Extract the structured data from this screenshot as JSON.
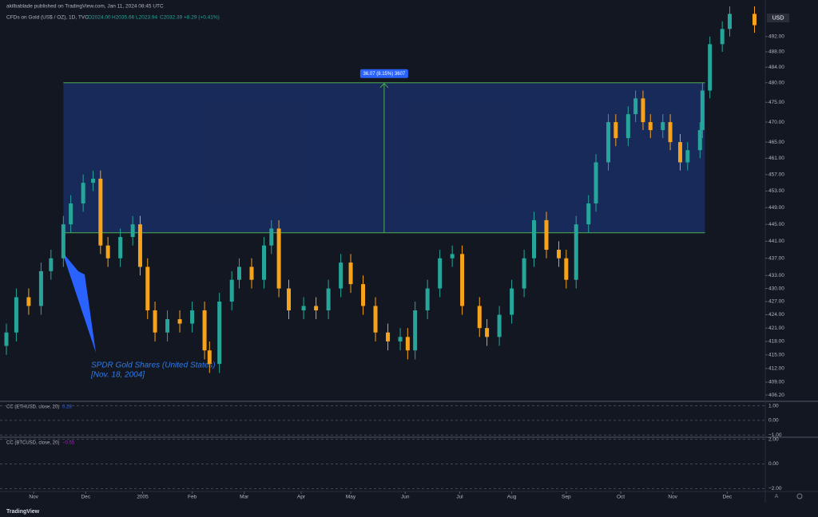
{
  "header": {
    "publisher": "akilbablade published on TradingView.com, Jan 11, 2024 08:45 UTC",
    "symbol": "CFDs on Gold (US$ / OZ), 1D, TVC",
    "ohlc": [
      "O2024.00",
      "H2035.66",
      "L2023.94",
      "C2032.39",
      "+8.29 (+0.41%)"
    ],
    "currency": "USD"
  },
  "chart_data": {
    "type": "candlestick",
    "log_scale": true,
    "up_color": "#26a69a",
    "down_color": "#f7a21b",
    "xlim": [
      0,
      307
    ],
    "ylim": [
      405,
      500
    ],
    "xticks": [
      {
        "value": 11,
        "label": "Nov"
      },
      {
        "value": 32,
        "label": "Dec"
      },
      {
        "value": 55,
        "label": "2005"
      },
      {
        "value": 75,
        "label": "Feb"
      },
      {
        "value": 96,
        "label": "Mar"
      },
      {
        "value": 119,
        "label": "Apr"
      },
      {
        "value": 139,
        "label": "May"
      },
      {
        "value": 161,
        "label": "Jun"
      },
      {
        "value": 183,
        "label": "Jul"
      },
      {
        "value": 204,
        "label": "Aug"
      },
      {
        "value": 226,
        "label": "Sep"
      },
      {
        "value": 248,
        "label": "Oct"
      },
      {
        "value": 269,
        "label": "Nov"
      },
      {
        "value": 291,
        "label": "Dec"
      }
    ],
    "yticks": [
      {
        "value": 492,
        "label": "492.00"
      },
      {
        "value": 488,
        "label": "488.00"
      },
      {
        "value": 484,
        "label": "484.00"
      },
      {
        "value": 480,
        "label": "480.00"
      },
      {
        "value": 475,
        "label": "475.00"
      },
      {
        "value": 470,
        "label": "470.00"
      },
      {
        "value": 465,
        "label": "465.00"
      },
      {
        "value": 461,
        "label": "461.00"
      },
      {
        "value": 457,
        "label": "457.00"
      },
      {
        "value": 453,
        "label": "453.00"
      },
      {
        "value": 449,
        "label": "449.00"
      },
      {
        "value": 445,
        "label": "445.00"
      },
      {
        "value": 441,
        "label": "441.00"
      },
      {
        "value": 437,
        "label": "437.00"
      },
      {
        "value": 433,
        "label": "433.00"
      },
      {
        "value": 430,
        "label": "430.00"
      },
      {
        "value": 427,
        "label": "427.00"
      },
      {
        "value": 424,
        "label": "424.00"
      },
      {
        "value": 421,
        "label": "421.00"
      },
      {
        "value": 418,
        "label": "418.00"
      },
      {
        "value": 415,
        "label": "415.00"
      },
      {
        "value": 412,
        "label": "412.00"
      },
      {
        "value": 409,
        "label": "409.00"
      },
      {
        "value": 406.2,
        "label": "406.20"
      }
    ],
    "x": [
      0,
      4,
      9,
      14,
      18,
      23,
      26,
      31,
      35,
      38,
      41,
      46,
      51,
      54,
      57,
      60,
      65,
      70,
      75,
      80,
      82,
      86,
      91,
      94,
      99,
      104,
      107,
      110,
      114,
      120,
      125,
      130,
      135,
      139,
      144,
      149,
      154,
      159,
      162,
      165,
      170,
      175,
      180,
      184,
      191,
      194,
      199,
      204,
      209,
      213,
      218,
      223,
      226,
      230,
      235,
      238,
      243,
      246,
      251,
      254,
      257,
      260,
      265,
      268,
      272,
      275,
      280,
      281,
      284,
      289,
      292,
      302
    ],
    "open": [
      417,
      420,
      428,
      426,
      434,
      437,
      445,
      450,
      455,
      456,
      440,
      437,
      442,
      445,
      435,
      425,
      420,
      423,
      422,
      425,
      416,
      413,
      427,
      432,
      435,
      432,
      440,
      444,
      430,
      425,
      426,
      425,
      430,
      436,
      431,
      426,
      420,
      418,
      419,
      416,
      425,
      430,
      437,
      438,
      426,
      421,
      419,
      424,
      430,
      437,
      446,
      439,
      437,
      432,
      445,
      450,
      460,
      470,
      466,
      472,
      476,
      470,
      468,
      470,
      465,
      460,
      463,
      468,
      478,
      490,
      494,
      498
    ],
    "high": [
      422,
      430,
      430,
      436,
      439,
      447,
      452,
      457,
      458,
      458,
      442,
      444,
      447,
      447,
      437,
      427,
      425,
      425,
      427,
      427,
      418,
      429,
      434,
      437,
      437,
      442,
      446,
      446,
      432,
      428,
      428,
      432,
      438,
      438,
      433,
      428,
      422,
      421,
      421,
      427,
      432,
      439,
      440,
      440,
      428,
      423,
      426,
      432,
      439,
      448,
      448,
      441,
      439,
      447,
      452,
      462,
      472,
      472,
      474,
      478,
      478,
      472,
      472,
      472,
      467,
      465,
      470,
      480,
      492,
      496,
      500,
      500
    ],
    "low": [
      415,
      418,
      424,
      424,
      432,
      435,
      443,
      448,
      453,
      438,
      435,
      435,
      440,
      433,
      423,
      418,
      418,
      420,
      420,
      414,
      411,
      411,
      425,
      430,
      430,
      430,
      438,
      428,
      423,
      423,
      423,
      423,
      428,
      429,
      424,
      418,
      416,
      416,
      414,
      414,
      423,
      428,
      435,
      424,
      419,
      417,
      417,
      422,
      428,
      435,
      437,
      435,
      430,
      430,
      443,
      448,
      458,
      464,
      464,
      470,
      468,
      466,
      466,
      463,
      458,
      458,
      461,
      466,
      476,
      488,
      492,
      493
    ],
    "close": [
      420,
      428,
      426,
      434,
      437,
      445,
      450,
      455,
      456,
      440,
      437,
      442,
      445,
      435,
      425,
      420,
      423,
      422,
      425,
      416,
      413,
      427,
      432,
      435,
      432,
      440,
      444,
      430,
      425,
      426,
      425,
      430,
      436,
      431,
      426,
      420,
      418,
      419,
      416,
      425,
      430,
      437,
      438,
      426,
      421,
      419,
      424,
      430,
      437,
      446,
      439,
      437,
      432,
      445,
      450,
      460,
      470,
      466,
      472,
      476,
      470,
      468,
      470,
      465,
      460,
      463,
      468,
      478,
      490,
      494,
      498,
      495
    ],
    "measure": {
      "label": "36.07 (8.15%) 3607",
      "x_start": 23,
      "x_end": 282,
      "top": 480,
      "bottom": 443
    },
    "annotation": [
      "SPDR Gold Shares (United States)",
      "[Nov. 18, 2004]"
    ],
    "panes": [
      {
        "title": "CC (ETHUSD, close, 20)",
        "value_label": "0.28",
        "value_color": "#2962ff",
        "ylim": [
          -1.15,
          1.25
        ],
        "yticks": [
          {
            "value": 1,
            "label": "1.00"
          },
          {
            "value": 0,
            "label": "0.00"
          },
          {
            "value": -1,
            "label": "−1.00"
          }
        ]
      },
      {
        "title": "CC (BTCUSD, close, 20)",
        "value_label": "−0.55",
        "value_color": "#9c27b0",
        "ylim": [
          -2.1,
          2.1
        ],
        "yticks": [
          {
            "value": 2,
            "label": "2.00"
          },
          {
            "value": 0,
            "label": "0.00"
          },
          {
            "value": -2,
            "label": "−2.00"
          }
        ]
      }
    ]
  },
  "footer": {
    "brand": "TradingView"
  }
}
